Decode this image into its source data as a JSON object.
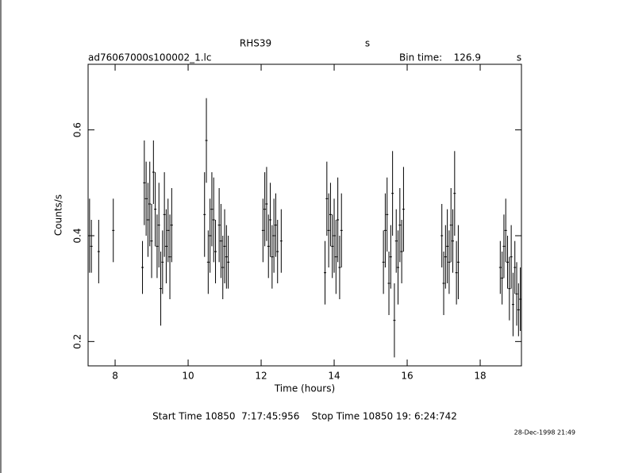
{
  "chart_data": {
    "type": "errorbar",
    "title": "RHS39",
    "subtitle": "s",
    "file_name": "ad76067000s100002_1.lc",
    "bin_time_label": "Bin time:",
    "bin_time": 126.9,
    "bin_time_unit": "s",
    "x_label": "Time (hours)",
    "y_label": "Counts/s",
    "start_stop": "Start Time 10850  7:17:45:956    Stop Time 10850 19: 6:24:742",
    "timestamp": "28-Dec-1998 21:49",
    "xlim": [
      7.26,
      19.13
    ],
    "ylim": [
      0.154,
      0.724
    ],
    "xticks": [
      8,
      10,
      12,
      14,
      16,
      18
    ],
    "yticks": [
      0.2,
      0.4,
      0.6
    ],
    "color": "#000000",
    "series": [
      {
        "name": "RHS39",
        "x": [
          7.3,
          7.35,
          7.55,
          7.95,
          8.75,
          8.8,
          8.85,
          8.9,
          8.95,
          9.0,
          9.05,
          9.1,
          9.15,
          9.2,
          9.25,
          9.3,
          9.35,
          9.4,
          9.45,
          9.5,
          9.55,
          10.45,
          10.5,
          10.55,
          10.6,
          10.65,
          10.7,
          10.75,
          10.85,
          10.9,
          10.95,
          11.0,
          11.05,
          11.1,
          12.05,
          12.1,
          12.15,
          12.2,
          12.25,
          12.3,
          12.35,
          12.4,
          12.45,
          12.55,
          13.75,
          13.8,
          13.85,
          13.9,
          13.95,
          14.0,
          14.05,
          14.1,
          14.15,
          14.2,
          15.35,
          15.4,
          15.45,
          15.5,
          15.55,
          15.6,
          15.65,
          15.7,
          15.75,
          15.8,
          15.85,
          15.9,
          16.95,
          17.0,
          17.05,
          17.1,
          17.15,
          17.2,
          17.25,
          17.3,
          17.35,
          17.4,
          18.55,
          18.6,
          18.65,
          18.7,
          18.75,
          18.8,
          18.85,
          18.9,
          18.95,
          19.0,
          19.05,
          19.1
        ],
        "values": [
          0.4,
          0.38,
          0.37,
          0.41,
          0.34,
          0.5,
          0.47,
          0.43,
          0.46,
          0.39,
          0.52,
          0.45,
          0.38,
          0.42,
          0.3,
          0.35,
          0.44,
          0.38,
          0.41,
          0.36,
          0.42,
          0.44,
          0.58,
          0.35,
          0.4,
          0.45,
          0.43,
          0.37,
          0.42,
          0.39,
          0.34,
          0.38,
          0.36,
          0.35,
          0.41,
          0.45,
          0.46,
          0.38,
          0.43,
          0.36,
          0.4,
          0.42,
          0.37,
          0.39,
          0.33,
          0.47,
          0.41,
          0.44,
          0.38,
          0.4,
          0.36,
          0.43,
          0.34,
          0.41,
          0.35,
          0.41,
          0.44,
          0.31,
          0.36,
          0.48,
          0.24,
          0.39,
          0.34,
          0.42,
          0.37,
          0.45,
          0.4,
          0.31,
          0.36,
          0.38,
          0.35,
          0.42,
          0.39,
          0.48,
          0.33,
          0.35,
          0.34,
          0.32,
          0.38,
          0.41,
          0.35,
          0.3,
          0.36,
          0.27,
          0.34,
          0.29,
          0.26,
          0.28
        ],
        "errors": [
          0.07,
          0.05,
          0.06,
          0.06,
          0.05,
          0.08,
          0.07,
          0.07,
          0.08,
          0.07,
          0.06,
          0.07,
          0.06,
          0.08,
          0.07,
          0.06,
          0.08,
          0.07,
          0.06,
          0.08,
          0.07,
          0.08,
          0.08,
          0.06,
          0.07,
          0.07,
          0.08,
          0.06,
          0.07,
          0.07,
          0.06,
          0.07,
          0.06,
          0.05,
          0.06,
          0.07,
          0.07,
          0.06,
          0.07,
          0.06,
          0.07,
          0.06,
          0.06,
          0.06,
          0.06,
          0.07,
          0.07,
          0.06,
          0.06,
          0.07,
          0.07,
          0.08,
          0.06,
          0.07,
          0.06,
          0.07,
          0.07,
          0.06,
          0.06,
          0.08,
          0.07,
          0.06,
          0.07,
          0.07,
          0.06,
          0.08,
          0.06,
          0.06,
          0.06,
          0.07,
          0.06,
          0.07,
          0.06,
          0.08,
          0.06,
          0.07,
          0.05,
          0.05,
          0.06,
          0.06,
          0.05,
          0.06,
          0.06,
          0.06,
          0.05,
          0.06,
          0.05,
          0.06
        ]
      }
    ]
  }
}
